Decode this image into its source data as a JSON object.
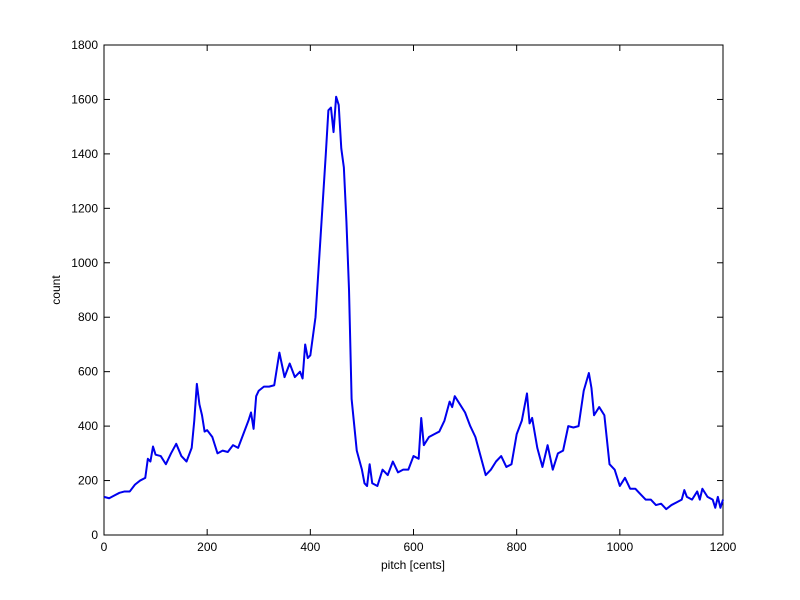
{
  "chart_data": {
    "type": "line",
    "xlabel": "pitch [cents]",
    "ylabel": "count",
    "x": [
      0,
      10,
      20,
      30,
      40,
      50,
      60,
      70,
      80,
      85,
      90,
      95,
      100,
      110,
      120,
      130,
      140,
      150,
      160,
      170,
      175,
      180,
      185,
      190,
      195,
      200,
      210,
      220,
      230,
      240,
      250,
      260,
      270,
      280,
      285,
      290,
      295,
      300,
      310,
      320,
      330,
      340,
      350,
      360,
      370,
      380,
      385,
      390,
      395,
      400,
      410,
      420,
      430,
      435,
      440,
      445,
      450,
      455,
      460,
      465,
      470,
      475,
      480,
      490,
      500,
      505,
      510,
      515,
      520,
      530,
      540,
      550,
      560,
      570,
      580,
      590,
      600,
      610,
      615,
      620,
      630,
      640,
      650,
      660,
      670,
      675,
      680,
      690,
      700,
      710,
      720,
      730,
      740,
      750,
      760,
      770,
      780,
      790,
      800,
      810,
      820,
      825,
      830,
      840,
      850,
      860,
      870,
      880,
      890,
      900,
      910,
      920,
      930,
      940,
      945,
      950,
      960,
      970,
      980,
      990,
      1000,
      1010,
      1020,
      1030,
      1040,
      1050,
      1060,
      1070,
      1080,
      1090,
      1100,
      1110,
      1120,
      1125,
      1130,
      1140,
      1150,
      1155,
      1160,
      1170,
      1180,
      1185,
      1190,
      1195,
      1200
    ],
    "values": [
      140,
      135,
      145,
      155,
      160,
      160,
      185,
      200,
      210,
      280,
      270,
      325,
      295,
      290,
      260,
      300,
      335,
      290,
      270,
      320,
      420,
      555,
      480,
      440,
      380,
      385,
      360,
      300,
      310,
      305,
      330,
      320,
      370,
      420,
      450,
      390,
      510,
      530,
      545,
      545,
      550,
      670,
      580,
      630,
      580,
      600,
      575,
      700,
      650,
      660,
      800,
      1100,
      1400,
      1560,
      1570,
      1480,
      1610,
      1580,
      1420,
      1350,
      1150,
      900,
      500,
      310,
      240,
      190,
      180,
      260,
      190,
      180,
      240,
      220,
      270,
      230,
      240,
      240,
      290,
      280,
      430,
      330,
      360,
      370,
      380,
      420,
      490,
      470,
      510,
      480,
      450,
      400,
      360,
      290,
      220,
      240,
      270,
      290,
      250,
      260,
      370,
      420,
      520,
      410,
      430,
      320,
      250,
      330,
      240,
      300,
      310,
      400,
      395,
      400,
      530,
      595,
      540,
      440,
      470,
      440,
      260,
      240,
      180,
      210,
      170,
      170,
      150,
      130,
      130,
      110,
      115,
      95,
      110,
      120,
      130,
      165,
      140,
      130,
      160,
      130,
      170,
      140,
      130,
      100,
      140,
      100,
      130
    ],
    "color": "#0000ee",
    "xlim": [
      0,
      1200
    ],
    "ylim": [
      0,
      1800
    ],
    "xticks": [
      0,
      200,
      400,
      600,
      800,
      1000,
      1200
    ],
    "yticks": [
      0,
      200,
      400,
      600,
      800,
      1000,
      1200,
      1400,
      1600,
      1800
    ],
    "grid": false
  }
}
